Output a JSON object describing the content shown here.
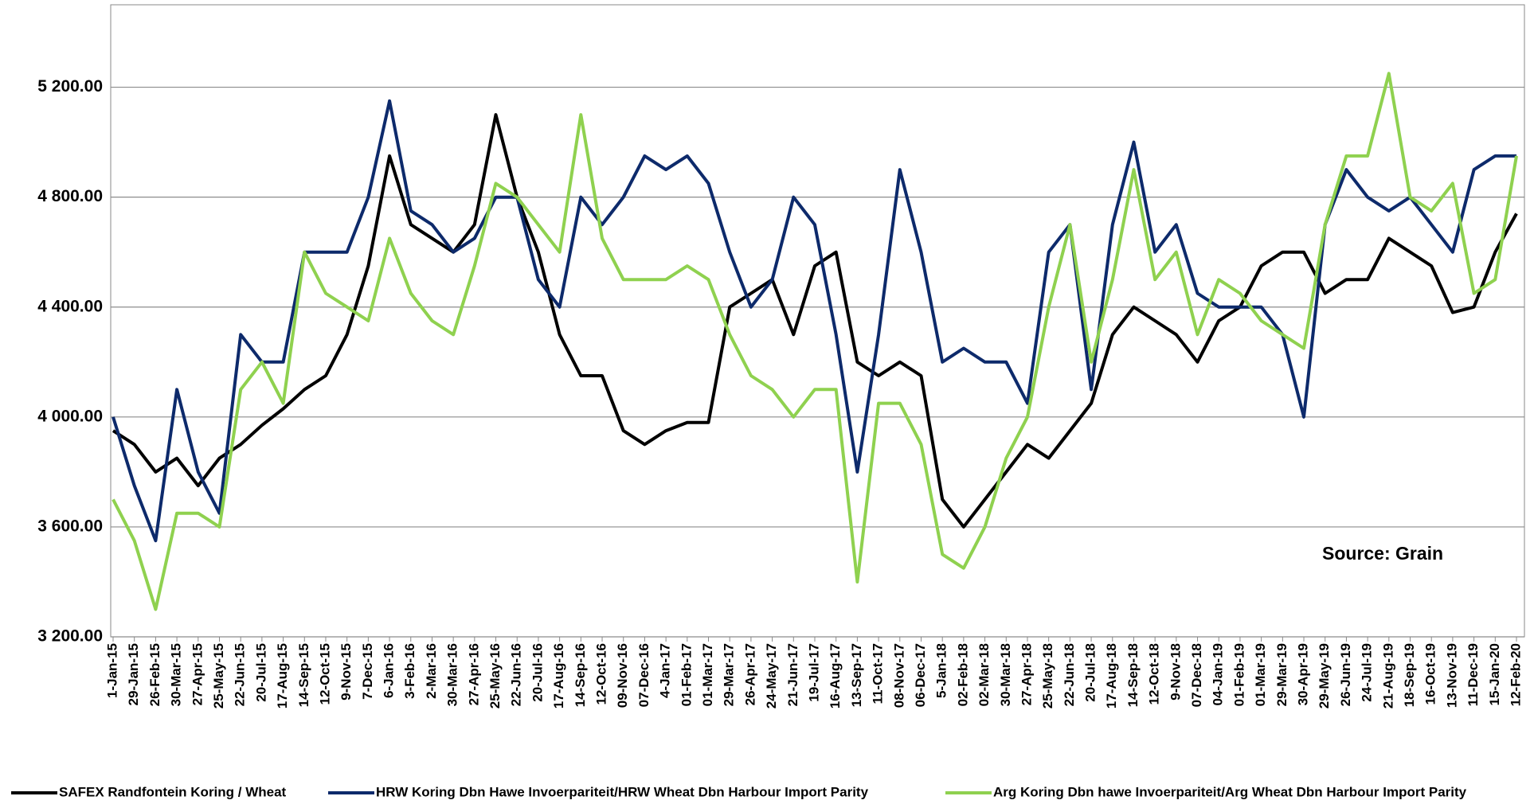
{
  "chart_data": {
    "type": "line",
    "source": "Source: Grain",
    "categories": [
      "1-Jan-15",
      "29-Jan-15",
      "26-Feb-15",
      "30-Mar-15",
      "27-Apr-15",
      "25-May-15",
      "22-Jun-15",
      "20-Jul-15",
      "17-Aug-15",
      "14-Sep-15",
      "12-Oct-15",
      "9-Nov-15",
      "7-Dec-15",
      "6-Jan-16",
      "3-Feb-16",
      "2-Mar-16",
      "30-Mar-16",
      "27-Apr-16",
      "25-May-16",
      "22-Jun-16",
      "20-Jul-16",
      "17-Aug-16",
      "14-Sep-16",
      "12-Oct-16",
      "09-Nov-16",
      "07-Dec-16",
      "4-Jan-17",
      "01-Feb-17",
      "01-Mar-17",
      "29-Mar-17",
      "26-Apr-17",
      "24-May-17",
      "21-Jun-17",
      "19-Jul-17",
      "16-Aug-17",
      "13-Sep-17",
      "11-Oct-17",
      "08-Nov-17",
      "06-Dec-17",
      "5-Jan-18",
      "02-Feb-18",
      "02-Mar-18",
      "30-Mar-18",
      "27-Apr-18",
      "25-May-18",
      "22-Jun-18",
      "20-Jul-18",
      "17-Aug-18",
      "14-Sep-18",
      "12-Oct-18",
      "9-Nov-18",
      "07-Dec-18",
      "04-Jan-19",
      "01-Feb-19",
      "01-Mar-19",
      "29-Mar-19",
      "30-Apr-19",
      "29-May-19",
      "26-Jun-19",
      "24-Jul-19",
      "21-Aug-19",
      "18-Sep-19",
      "16-Oct-19",
      "13-Nov-19",
      "11-Dec-19",
      "15-Jan-20",
      "12-Feb-20"
    ],
    "series": [
      {
        "name": "SAFEX  Randfontein Koring / Wheat",
        "color": "#000000",
        "values": [
          3950,
          3900,
          3800,
          3850,
          3750,
          3850,
          3900,
          3970,
          4030,
          4100,
          4150,
          4300,
          4550,
          4950,
          4700,
          4650,
          4600,
          4700,
          5100,
          4800,
          4600,
          4300,
          4150,
          4150,
          3950,
          3900,
          3950,
          3980,
          3980,
          4400,
          4450,
          4500,
          4300,
          4550,
          4600,
          4200,
          4150,
          4200,
          4150,
          3700,
          3600,
          3700,
          3800,
          3900,
          3850,
          3950,
          4050,
          4300,
          4400,
          4350,
          4300,
          4200,
          4350,
          4400,
          4550,
          4600,
          4600,
          4450,
          4500,
          4500,
          4650,
          4600,
          4550,
          4380,
          4400,
          4600,
          4740
        ]
      },
      {
        "name": "HRW Koring Dbn Hawe Invoerpariteit/HRW Wheat Dbn Harbour Import Parity",
        "color": "#0d2a6b",
        "values": [
          4000,
          3750,
          3550,
          4100,
          3800,
          3650,
          4300,
          4200,
          4200,
          4600,
          4600,
          4600,
          4800,
          5150,
          4750,
          4700,
          4600,
          4650,
          4800,
          4800,
          4500,
          4400,
          4800,
          4700,
          4800,
          4950,
          4900,
          4950,
          4850,
          4600,
          4400,
          4500,
          4800,
          4700,
          4300,
          3800,
          4300,
          4900,
          4600,
          4200,
          4250,
          4200,
          4200,
          4050,
          4600,
          4700,
          4100,
          4700,
          5000,
          4600,
          4700,
          4450,
          4400,
          4400,
          4400,
          4300,
          4000,
          4700,
          4900,
          4800,
          4750,
          4800,
          4700,
          4600,
          4900,
          4950,
          4950
        ]
      },
      {
        "name": "Arg Koring Dbn hawe Invoerpariteit/Arg Wheat Dbn Harbour Import Parity",
        "color": "#8fd14f",
        "values": [
          3700,
          3550,
          3300,
          3650,
          3650,
          3600,
          4100,
          4200,
          4050,
          4600,
          4450,
          4400,
          4350,
          4650,
          4450,
          4350,
          4300,
          4550,
          4850,
          4800,
          4700,
          4600,
          5100,
          4650,
          4500,
          4500,
          4500,
          4550,
          4500,
          4300,
          4150,
          4100,
          4000,
          4100,
          4100,
          3400,
          4050,
          4050,
          3900,
          3500,
          3450,
          3600,
          3850,
          4000,
          4400,
          4700,
          4200,
          4500,
          4900,
          4500,
          4600,
          4300,
          4500,
          4450,
          4350,
          4300,
          4250,
          4700,
          4950,
          4950,
          5250,
          4800,
          4750,
          4850,
          4450,
          4500,
          4950
        ]
      }
    ],
    "ylim": [
      3200,
      5500
    ],
    "yticks": [
      {
        "value": 3200,
        "label": "3 200.00"
      },
      {
        "value": 3600,
        "label": "3 600.00"
      },
      {
        "value": 4000,
        "label": "4 000.00"
      },
      {
        "value": 4400,
        "label": "4 400.00"
      },
      {
        "value": 4800,
        "label": "4 800.00"
      },
      {
        "value": 5200,
        "label": "5 200.00"
      }
    ],
    "grid": true
  }
}
